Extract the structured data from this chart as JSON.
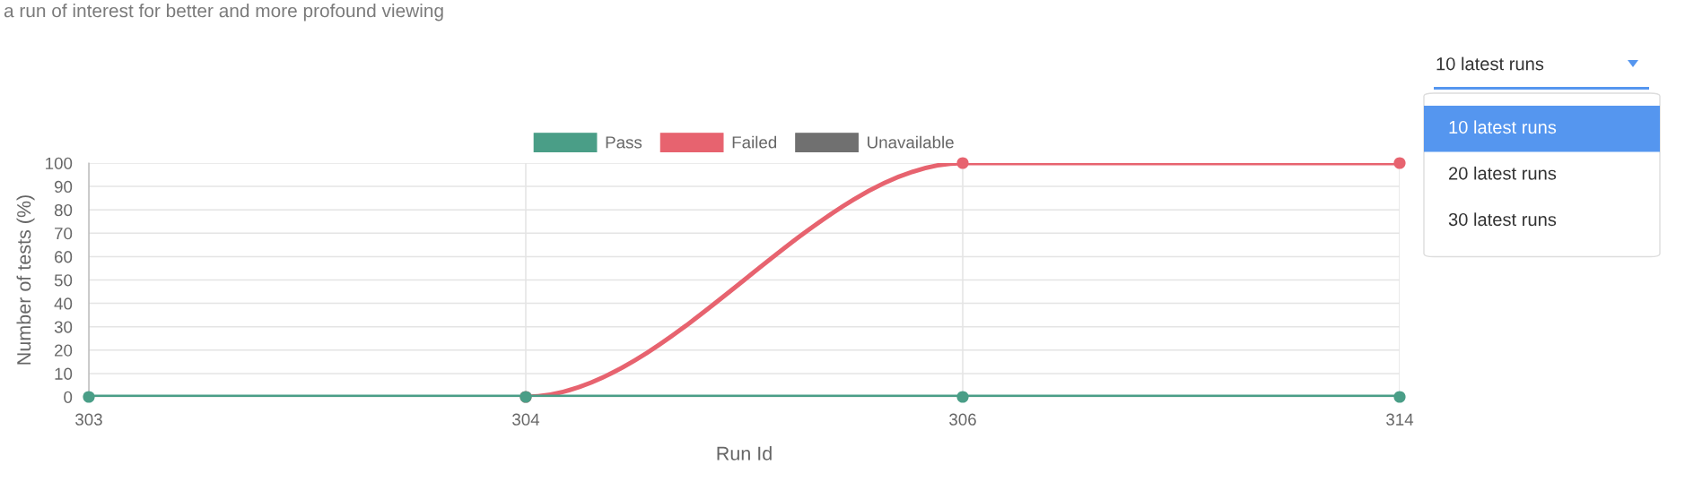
{
  "chart_data": {
    "type": "line",
    "xlabel": "Run Id",
    "ylabel": "Number of tests (%)",
    "categories": [
      "303",
      "304",
      "306",
      "314"
    ],
    "series": [
      {
        "name": "Pass",
        "color": "#4a9e87",
        "values": [
          0,
          0,
          0,
          0
        ]
      },
      {
        "name": "Failed",
        "color": "#e7636f",
        "values": [
          null,
          0,
          100,
          100
        ]
      },
      {
        "name": "Unavailable",
        "color": "#707070",
        "values": [
          null,
          null,
          null,
          null
        ]
      }
    ],
    "ylim": [
      0,
      100
    ],
    "yticks": [
      0,
      10,
      20,
      30,
      40,
      50,
      60,
      70,
      80,
      90,
      100
    ],
    "grid": true,
    "legend": "top",
    "marker": "circle",
    "line_style": "solid",
    "annotations": [
      "a run of interest for better and more profound viewing",
      "10 latest runs",
      "10 latest runs",
      "20 latest runs",
      "30 latest runs"
    ]
  }
}
